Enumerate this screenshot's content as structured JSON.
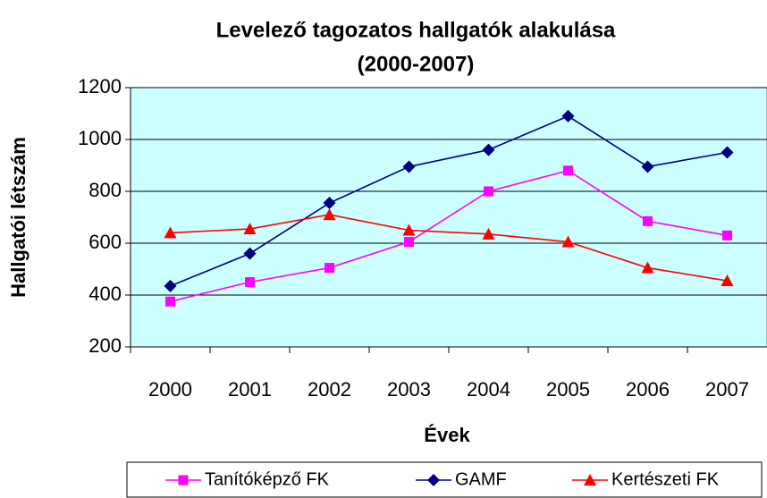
{
  "chart_data": {
    "type": "line",
    "title": [
      "Levelező tagozatos hallgatók alakulása",
      "(2000-2007)"
    ],
    "x_label": "Évek",
    "y_label": "Hallgatói létszám",
    "categories": [
      "2000",
      "2001",
      "2002",
      "2003",
      "2004",
      "2005",
      "2006",
      "2007"
    ],
    "series": [
      {
        "name": "Tanítóképző FK",
        "color": "#ff00ff",
        "marker": "square",
        "values": [
          375,
          450,
          505,
          605,
          800,
          880,
          685,
          630
        ]
      },
      {
        "name": "GAMF",
        "color": "#000080",
        "marker": "diamond",
        "values": [
          435,
          560,
          755,
          895,
          960,
          1090,
          895,
          950
        ]
      },
      {
        "name": "Kertészeti FK",
        "color": "#ff0000",
        "marker": "triangle",
        "values": [
          640,
          655,
          710,
          650,
          635,
          605,
          505,
          455
        ]
      }
    ],
    "ylim": [
      200,
      1200
    ],
    "yticks": [
      200,
      400,
      600,
      800,
      1000,
      1200
    ],
    "grid": true,
    "legend": "bottom",
    "background": "#ccffff"
  }
}
